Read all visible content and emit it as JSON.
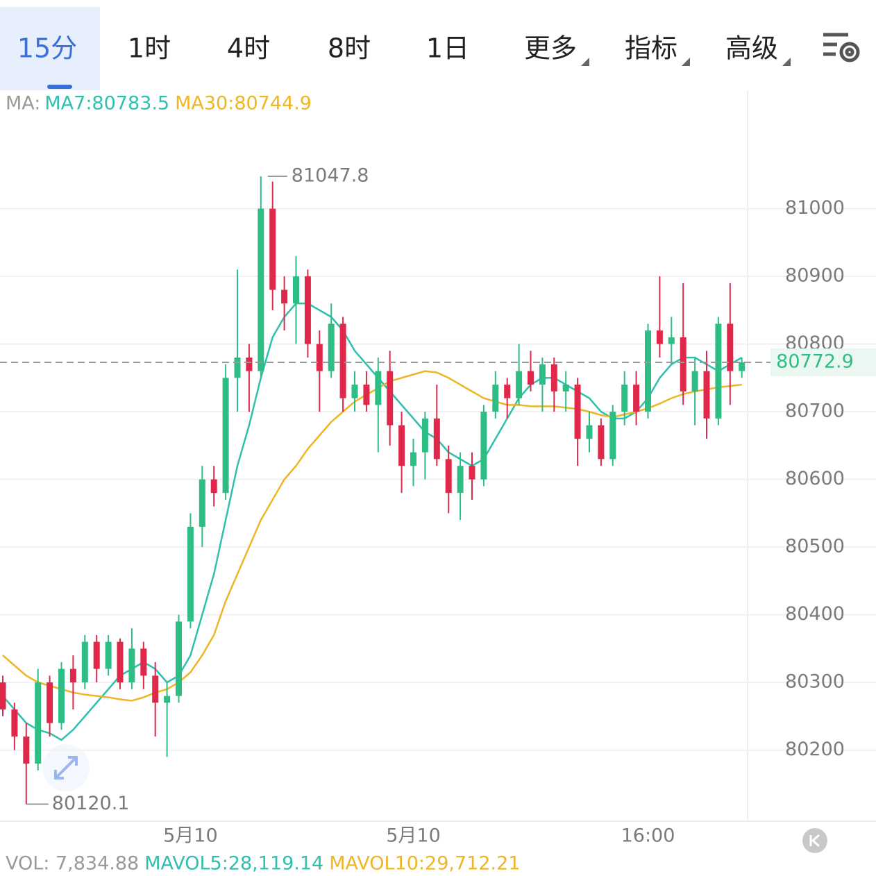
{
  "tabs": [
    "15分",
    "1时",
    "4时",
    "8时",
    "1日",
    "更多",
    "指标",
    "高级"
  ],
  "active_tab": 0,
  "chart_data": {
    "type": "candlestick",
    "legend_title": "MA:",
    "series": [
      {
        "name": "MA7:80783.5",
        "color": "#2ebfae",
        "values": [
          80280,
          80260,
          80240,
          80230,
          80225,
          80215,
          80230,
          80250,
          80270,
          80290,
          80310,
          80320,
          80330,
          80320,
          80300,
          80310,
          80340,
          80400,
          80460,
          80540,
          80620,
          80680,
          80750,
          80810,
          80840,
          80860,
          80860,
          80850,
          80840,
          80820,
          80790,
          80770,
          80750,
          80730,
          80710,
          80690,
          80670,
          80660,
          80640,
          80630,
          80620,
          80630,
          80660,
          80690,
          80720,
          80740,
          80750,
          80750,
          80740,
          80730,
          80720,
          80700,
          80690,
          80690,
          80700,
          80720,
          80750,
          80770,
          80780,
          80780,
          80770,
          80760,
          80770,
          80780
        ]
      },
      {
        "name": "MA30:80744.9",
        "color": "#eeb524",
        "values": [
          80340,
          80325,
          80310,
          80300,
          80295,
          80290,
          80285,
          80282,
          80280,
          80278,
          80275,
          80273,
          80278,
          80285,
          80290,
          80300,
          80315,
          80340,
          80370,
          80420,
          80460,
          80500,
          80540,
          80570,
          80600,
          80620,
          80645,
          80665,
          80685,
          80700,
          80715,
          80725,
          80735,
          80745,
          80750,
          80755,
          80760,
          80758,
          80750,
          80740,
          80730,
          80720,
          80715,
          80710,
          80710,
          80708,
          80708,
          80708,
          80706,
          80704,
          80700,
          80695,
          80692,
          80696,
          80700,
          80705,
          80712,
          80720,
          80726,
          80730,
          80733,
          80736,
          80738,
          80740
        ]
      }
    ],
    "ohlc": [
      [
        80300,
        80310,
        80250,
        80260
      ],
      [
        80260,
        80270,
        80200,
        80220
      ],
      [
        80220,
        80240,
        80120.1,
        80180
      ],
      [
        80180,
        80320,
        80170,
        80300
      ],
      [
        80300,
        80310,
        80220,
        80240
      ],
      [
        80240,
        80330,
        80230,
        80320
      ],
      [
        80320,
        80340,
        80260,
        80300
      ],
      [
        80300,
        80370,
        80290,
        80360
      ],
      [
        80360,
        80370,
        80300,
        80320
      ],
      [
        80320,
        80370,
        80310,
        80360
      ],
      [
        80360,
        80365,
        80290,
        80300
      ],
      [
        80300,
        80380,
        80290,
        80350
      ],
      [
        80350,
        80360,
        80290,
        80310
      ],
      [
        80310,
        80330,
        80220,
        80270
      ],
      [
        80270,
        80300,
        80190,
        80280
      ],
      [
        80280,
        80400,
        80270,
        80390
      ],
      [
        80390,
        80550,
        80380,
        80530
      ],
      [
        80530,
        80620,
        80500,
        80600
      ],
      [
        80600,
        80620,
        80560,
        80580
      ],
      [
        80580,
        80770,
        80570,
        80750
      ],
      [
        80750,
        80910,
        80700,
        80780
      ],
      [
        80780,
        80800,
        80700,
        80760
      ],
      [
        80760,
        81047.8,
        80750,
        81000
      ],
      [
        81000,
        81040,
        80850,
        80880
      ],
      [
        80880,
        80900,
        80820,
        80860
      ],
      [
        80860,
        80930,
        80800,
        80900
      ],
      [
        80900,
        80910,
        80780,
        80800
      ],
      [
        80800,
        80820,
        80700,
        80760
      ],
      [
        80760,
        80860,
        80750,
        80830
      ],
      [
        80830,
        80840,
        80700,
        80720
      ],
      [
        80720,
        80760,
        80700,
        80740
      ],
      [
        80740,
        80760,
        80700,
        80710
      ],
      [
        80710,
        80780,
        80640,
        80760
      ],
      [
        80760,
        80790,
        80650,
        80680
      ],
      [
        80680,
        80700,
        80580,
        80620
      ],
      [
        80620,
        80660,
        80590,
        80640
      ],
      [
        80640,
        80700,
        80600,
        80690
      ],
      [
        80690,
        80740,
        80620,
        80630
      ],
      [
        80630,
        80650,
        80550,
        80580
      ],
      [
        80580,
        80640,
        80540,
        80620
      ],
      [
        80620,
        80640,
        80570,
        80600
      ],
      [
        80600,
        80710,
        80590,
        80700
      ],
      [
        80700,
        80760,
        80690,
        80740
      ],
      [
        80740,
        80750,
        80690,
        80720
      ],
      [
        80720,
        80800,
        80710,
        80760
      ],
      [
        80760,
        80790,
        80730,
        80740
      ],
      [
        80740,
        80780,
        80700,
        80770
      ],
      [
        80770,
        80780,
        80700,
        80730
      ],
      [
        80730,
        80760,
        80700,
        80740
      ],
      [
        80740,
        80750,
        80620,
        80660
      ],
      [
        80660,
        80700,
        80640,
        80680
      ],
      [
        80680,
        80690,
        80620,
        80630
      ],
      [
        80630,
        80710,
        80620,
        80700
      ],
      [
        80700,
        80760,
        80680,
        80740
      ],
      [
        80740,
        80760,
        80680,
        80700
      ],
      [
        80700,
        80830,
        80690,
        80820
      ],
      [
        80820,
        80900,
        80780,
        80800
      ],
      [
        80800,
        80840,
        80770,
        80810
      ],
      [
        80810,
        80890,
        80710,
        80730
      ],
      [
        80730,
        80780,
        80680,
        80760
      ],
      [
        80760,
        80790,
        80660,
        80690
      ],
      [
        80690,
        80840,
        80680,
        80830
      ],
      [
        80830,
        80890,
        80710,
        80760
      ],
      [
        80760,
        80780,
        80750,
        80772.9
      ]
    ],
    "categories": [
      null,
      null,
      null,
      null,
      null,
      null,
      null,
      null,
      null,
      null,
      null,
      null,
      null,
      null,
      null,
      null,
      "5月10",
      null,
      null,
      null,
      null,
      null,
      null,
      null,
      null,
      null,
      null,
      null,
      null,
      null,
      null,
      null,
      null,
      null,
      null,
      "5月10",
      null,
      null,
      null,
      null,
      null,
      null,
      null,
      null,
      null,
      null,
      null,
      null,
      null,
      null,
      null,
      null,
      null,
      null,
      null,
      "16:00",
      null,
      null,
      null,
      null,
      null,
      null,
      null,
      null
    ],
    "up_color": "#2ebd85",
    "down_color": "#e0294a",
    "ylim": [
      80095,
      81175
    ],
    "yticks": [
      80200,
      80300,
      80400,
      80500,
      80600,
      80700,
      80800,
      80900,
      81000
    ],
    "grid": true,
    "high": 81047.8,
    "low": 80120.1,
    "last_price": 80772.9,
    "volume_legend": [
      "VOL: 7,834.88",
      "MAVOL5:28,119.14",
      "MAVOL10:29,712.21"
    ]
  }
}
